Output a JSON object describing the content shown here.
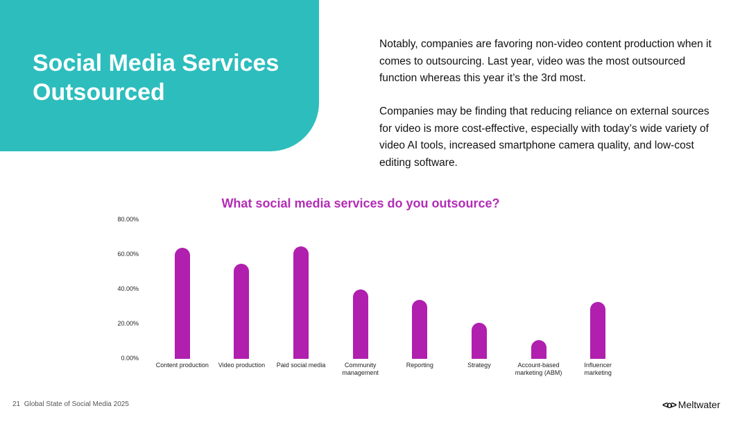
{
  "header": {
    "title": "Social Media Services Outsourced"
  },
  "paragraphs": [
    "Notably, companies are favoring non-video content production when it comes to outsourcing. Last year, video was the most outsourced function whereas this year it’s the 3rd most.",
    "Companies may be finding that reducing reliance on external sources for video is more cost-effective, especially with today’s wide variety of video AI tools, increased smartphone camera quality, and low-cost editing software."
  ],
  "chart_data": {
    "type": "bar",
    "title": "What social media services do you outsource?",
    "categories": [
      "Content production",
      "Video production",
      "Paid social media",
      "Community management",
      "Reporting",
      "Strategy",
      "Account-based marketing (ABM)",
      "Influencer marketing"
    ],
    "values": [
      64,
      55,
      65,
      40,
      34,
      21,
      11,
      33
    ],
    "color": "#b01fae",
    "ylim": [
      0,
      80
    ],
    "yticks": [
      {
        "value": 0,
        "label": "0.00%"
      },
      {
        "value": 20,
        "label": "20.00%"
      },
      {
        "value": 40,
        "label": "40.00%"
      },
      {
        "value": 60,
        "label": "60.00%"
      },
      {
        "value": 80,
        "label": "80.00%"
      }
    ],
    "grid": false
  },
  "footer": {
    "page": "21",
    "report": "Global State of Social Media 2025",
    "brand": "Meltwater"
  }
}
